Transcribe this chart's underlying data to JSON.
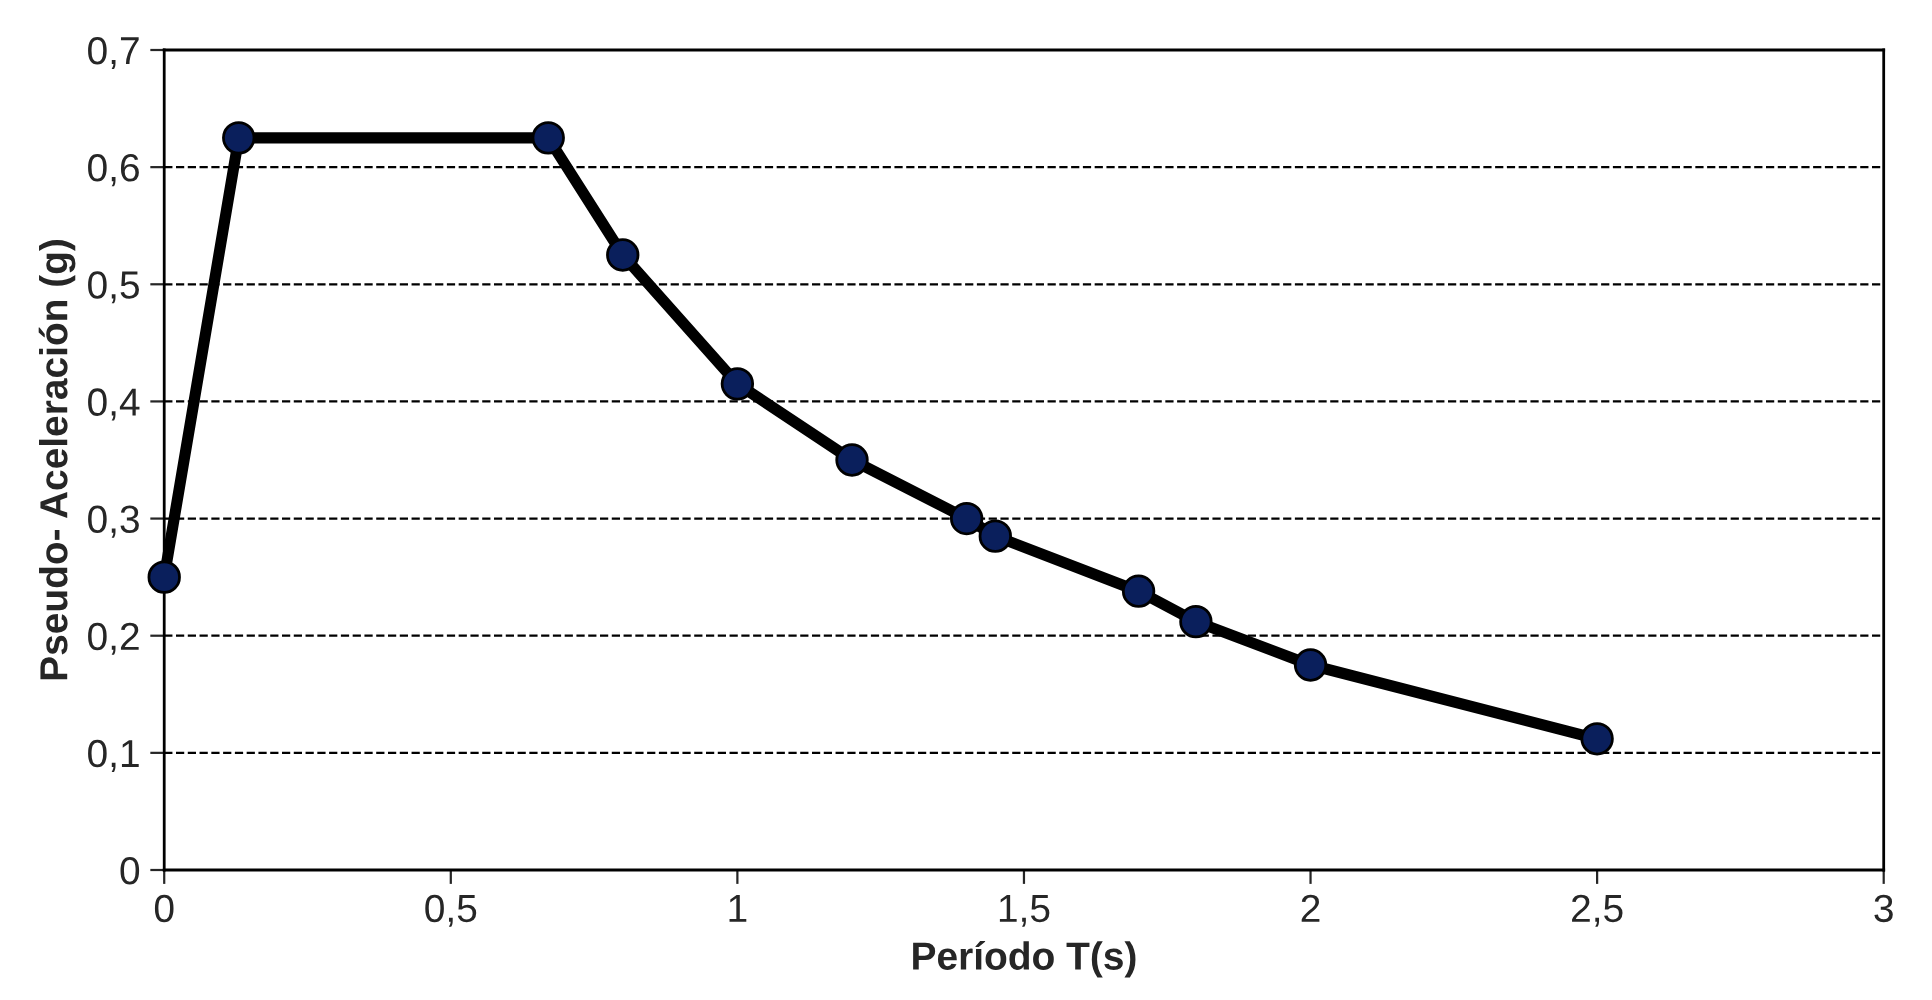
{
  "chart_data": {
    "type": "line",
    "xlabel": "Período T(s)",
    "ylabel": "Pseudo- Aceleración (g)",
    "x": [
      0,
      0.13,
      0.67,
      0.8,
      1.0,
      1.2,
      1.4,
      1.45,
      1.7,
      1.8,
      2.0,
      2.5
    ],
    "series": [
      {
        "color": "#000000",
        "values": [
          0.25,
          0.625,
          0.625,
          0.525,
          0.415,
          0.35,
          0.3,
          0.285,
          0.238,
          0.212,
          0.175,
          0.112
        ]
      }
    ],
    "marker": "circle",
    "line_style": "solid",
    "xlim": [
      0,
      3
    ],
    "xticks": [
      {
        "value": 0,
        "label": "0"
      },
      {
        "value": 0.5,
        "label": "0,5"
      },
      {
        "value": 1,
        "label": "1"
      },
      {
        "value": 1.5,
        "label": "1,5"
      },
      {
        "value": 2,
        "label": "2"
      },
      {
        "value": 2.5,
        "label": "2,5"
      },
      {
        "value": 3,
        "label": "3"
      }
    ],
    "ylim": [
      0,
      0.7
    ],
    "yticks": [
      {
        "value": 0,
        "label": "0"
      },
      {
        "value": 0.1,
        "label": "0,1"
      },
      {
        "value": 0.2,
        "label": "0,2"
      },
      {
        "value": 0.3,
        "label": "0,3"
      },
      {
        "value": 0.4,
        "label": "0,4"
      },
      {
        "value": 0.5,
        "label": "0,5"
      },
      {
        "value": 0.6,
        "label": "0,6"
      },
      {
        "value": 0.7,
        "label": "0,7"
      }
    ],
    "grid": "y"
  }
}
